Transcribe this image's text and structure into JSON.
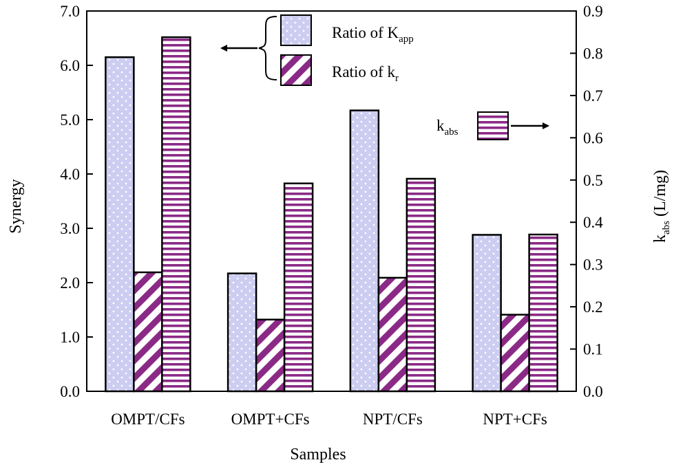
{
  "chart_data": {
    "type": "bar",
    "xlabel": "Samples",
    "ylabel_left": "Synergy",
    "ylabel_right": {
      "main": "k",
      "sub": "abs",
      "rest": " (L/mg)"
    },
    "ylim_left": [
      0,
      7
    ],
    "ylim_right": [
      0,
      0.9
    ],
    "yticks_left": [
      "0.0",
      "1.0",
      "2.0",
      "3.0",
      "4.0",
      "5.0",
      "6.0",
      "7.0"
    ],
    "yticks_right": [
      "0.0",
      "0.1",
      "0.2",
      "0.3",
      "0.4",
      "0.5",
      "0.6",
      "0.7",
      "0.8",
      "0.9"
    ],
    "categories": [
      "OMPT/CFs",
      "OMPT+CFs",
      "NPT/CFs",
      "NPT+CFs"
    ],
    "series": [
      {
        "key": "kapp",
        "axis": "left",
        "pattern": "dots",
        "values": [
          6.15,
          2.17,
          5.17,
          2.88
        ]
      },
      {
        "key": "kr",
        "axis": "left",
        "pattern": "diag",
        "values": [
          2.19,
          1.32,
          2.09,
          1.41
        ]
      },
      {
        "key": "kabs",
        "axis": "right",
        "pattern": "hstripe",
        "values": [
          0.838,
          0.492,
          0.503,
          0.371
        ]
      }
    ],
    "legend": {
      "kapp": {
        "main": "Ratio of K",
        "sub": "app"
      },
      "kr": {
        "main": "Ratio of k",
        "sub": "r"
      },
      "kabs": {
        "main": "k",
        "sub": "abs"
      }
    },
    "colors": {
      "dots_fill": "#cccdf0",
      "dots_dot": "#ffffff",
      "purple": "#8b2a86",
      "stripe_bg": "#ffffff",
      "line": "#000000"
    }
  }
}
